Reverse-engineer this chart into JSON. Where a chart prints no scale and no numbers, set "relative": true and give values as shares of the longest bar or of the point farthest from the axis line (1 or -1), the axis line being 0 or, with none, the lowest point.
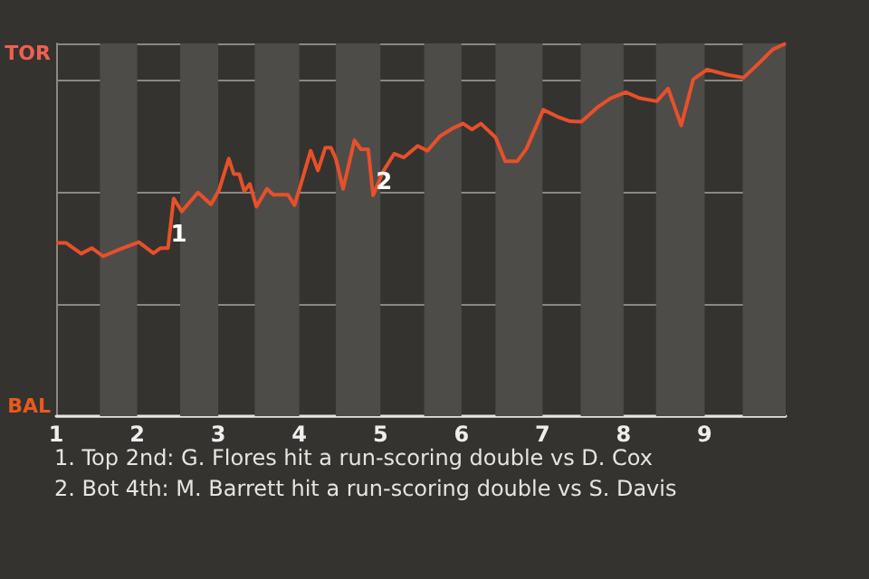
{
  "chart_data": {
    "type": "line",
    "x": [
      1,
      1.12,
      1.31,
      1.44,
      1.58,
      1.79,
      2.02,
      2.2,
      2.29,
      2.38,
      2.45,
      2.55,
      2.75,
      2.91,
      3.01,
      3.13,
      3.19,
      3.26,
      3.32,
      3.39,
      3.47,
      3.6,
      3.68,
      3.86,
      3.94,
      4.02,
      4.14,
      4.23,
      4.32,
      4.39,
      4.45,
      4.54,
      4.68,
      4.76,
      4.85,
      4.91,
      5.03,
      5.17,
      5.29,
      5.46,
      5.58,
      5.74,
      5.89,
      6.02,
      6.13,
      6.24,
      6.42,
      6.54,
      6.69,
      6.8,
      7.01,
      7.18,
      7.34,
      7.48,
      7.68,
      7.84,
      8.03,
      8.2,
      8.41,
      8.55,
      8.71,
      8.86,
      9.03,
      9.26,
      9.48,
      9.67,
      9.84,
      10
    ],
    "series": [
      {
        "color": "#e8502a",
        "values": [
          0.465,
          0.465,
          0.436,
          0.451,
          0.429,
          0.448,
          0.467,
          0.437,
          0.451,
          0.451,
          0.584,
          0.549,
          0.6,
          0.568,
          0.607,
          0.691,
          0.65,
          0.649,
          0.604,
          0.623,
          0.562,
          0.61,
          0.594,
          0.594,
          0.566,
          0.623,
          0.712,
          0.659,
          0.72,
          0.72,
          0.691,
          0.61,
          0.74,
          0.716,
          0.716,
          0.592,
          0.655,
          0.704,
          0.694,
          0.725,
          0.712,
          0.752,
          0.772,
          0.785,
          0.769,
          0.785,
          0.748,
          0.684,
          0.684,
          0.717,
          0.822,
          0.804,
          0.791,
          0.79,
          0.829,
          0.853,
          0.869,
          0.853,
          0.845,
          0.879,
          0.78,
          0.904,
          0.93,
          0.917,
          0.908,
          0.947,
          0.984,
          1
        ]
      }
    ],
    "relative": true,
    "xlim": [
      1,
      10
    ],
    "xticks": [
      1,
      2,
      3,
      4,
      5,
      6,
      7,
      8,
      9
    ],
    "grid": "y",
    "marker": "none",
    "bands": [
      {
        "axis": "x",
        "from": 1.54,
        "to": 2,
        "color": "#4e4c49"
      },
      {
        "axis": "x",
        "from": 2.53,
        "to": 3,
        "color": "#4e4c49"
      },
      {
        "axis": "x",
        "from": 3.45,
        "to": 4,
        "color": "#4e4c49"
      },
      {
        "axis": "x",
        "from": 4.45,
        "to": 5,
        "color": "#4e4c49"
      },
      {
        "axis": "x",
        "from": 5.54,
        "to": 6,
        "color": "#4e4c49"
      },
      {
        "axis": "x",
        "from": 6.42,
        "to": 7,
        "color": "#4e4c49"
      },
      {
        "axis": "x",
        "from": 7.47,
        "to": 8,
        "color": "#4e4c49"
      },
      {
        "axis": "x",
        "from": 8.4,
        "to": 9,
        "color": "#4e4c49"
      },
      {
        "axis": "x",
        "from": 9.47,
        "to": 10,
        "color": "#4e4c49"
      }
    ],
    "annotations": [
      "TOR",
      "BAL",
      {
        "text": "1",
        "x": 2.38,
        "y": 0.451
      },
      {
        "text": "2",
        "x": 4.91,
        "y": 0.592
      },
      "1. Top 2nd: G. Flores hit a run-scoring double vs D. Cox",
      "2. Bot 4th: M. Barrett hit a run-scoring double vs S. Davis"
    ]
  }
}
